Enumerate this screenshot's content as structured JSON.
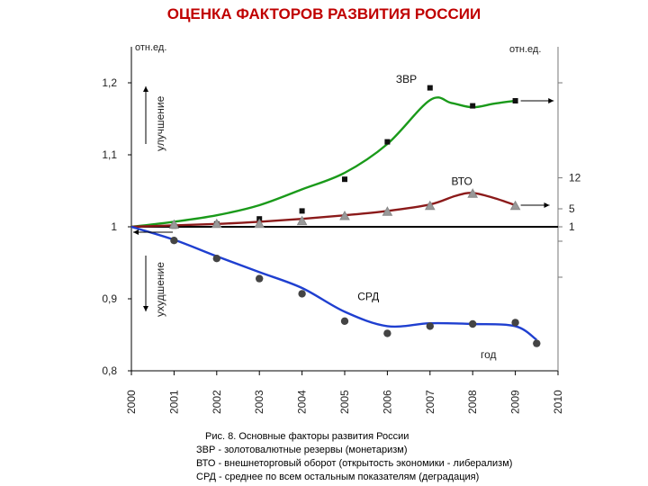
{
  "title": "ОЦЕНКА ФАКТОРОВ РАЗВИТИЯ РОССИИ",
  "colors": {
    "title": "#c00000",
    "zvr": "#1a9a1a",
    "vto": "#8b1a1a",
    "srd": "#1f3fd0",
    "axis": "#000000",
    "right_axis": "#777777"
  },
  "chart_data": {
    "type": "line",
    "left_unit": "отн.ед.",
    "right_unit": "отн.ед.",
    "xlabel": "год",
    "x_ticks": [
      "2000",
      "2001",
      "2002",
      "2003",
      "2004",
      "2005",
      "2006",
      "2007",
      "2008",
      "2009",
      "2010"
    ],
    "xlim": [
      2000,
      2010
    ],
    "ylim": [
      0.8,
      1.25
    ],
    "y_ticks": [
      "0,8",
      "0,9",
      "1",
      "1,1",
      "1,2"
    ],
    "y_tick_values": [
      0.8,
      0.9,
      1.0,
      1.1,
      1.2
    ],
    "right_ticks": [
      "1",
      "5",
      "12"
    ],
    "right_tick_values": [
      1.0,
      1.025,
      1.068
    ],
    "improvement_label": "улучшение",
    "deterioration_label": "ухудшение",
    "series": [
      {
        "name": "ЗВР",
        "color_key": "zvr",
        "marker": "square",
        "points": [
          [
            2001,
            1.001
          ],
          [
            2002,
            1.004
          ],
          [
            2003,
            1.011
          ],
          [
            2004,
            1.022
          ],
          [
            2005,
            1.066
          ],
          [
            2006,
            1.118
          ],
          [
            2007,
            1.193
          ],
          [
            2008,
            1.168
          ],
          [
            2009,
            1.175
          ]
        ],
        "trend": [
          [
            2000,
            1.0
          ],
          [
            2001,
            1.007
          ],
          [
            2002,
            1.016
          ],
          [
            2003,
            1.03
          ],
          [
            2004,
            1.052
          ],
          [
            2005,
            1.075
          ],
          [
            2006,
            1.115
          ],
          [
            2007,
            1.176
          ],
          [
            2007.5,
            1.172
          ],
          [
            2008,
            1.166
          ],
          [
            2008.5,
            1.171
          ],
          [
            2009,
            1.175
          ]
        ]
      },
      {
        "name": "ВТО",
        "color_key": "vto",
        "marker": "triangle",
        "points": [
          [
            2001,
            1.003
          ],
          [
            2002,
            1.004
          ],
          [
            2003,
            1.004
          ],
          [
            2004,
            1.008
          ],
          [
            2005,
            1.015
          ],
          [
            2006,
            1.021
          ],
          [
            2007,
            1.029
          ],
          [
            2008,
            1.046
          ],
          [
            2009,
            1.029
          ]
        ],
        "trend": [
          [
            2000,
            1.0
          ],
          [
            2002,
            1.004
          ],
          [
            2003,
            1.007
          ],
          [
            2004,
            1.011
          ],
          [
            2005,
            1.016
          ],
          [
            2006,
            1.022
          ],
          [
            2007,
            1.031
          ],
          [
            2007.6,
            1.043
          ],
          [
            2008,
            1.047
          ],
          [
            2008.5,
            1.04
          ],
          [
            2009,
            1.03
          ]
        ]
      },
      {
        "name": "СРД",
        "color_key": "srd",
        "marker": "circle",
        "points": [
          [
            2001,
            0.981
          ],
          [
            2002,
            0.956
          ],
          [
            2003,
            0.928
          ],
          [
            2004,
            0.907
          ],
          [
            2005,
            0.869
          ],
          [
            2006,
            0.852
          ],
          [
            2007,
            0.862
          ],
          [
            2008,
            0.865
          ],
          [
            2009,
            0.867
          ],
          [
            2009.5,
            0.838
          ]
        ],
        "trend": [
          [
            2000,
            1.0
          ],
          [
            2001,
            0.982
          ],
          [
            2002,
            0.959
          ],
          [
            2003,
            0.937
          ],
          [
            2004,
            0.915
          ],
          [
            2005,
            0.882
          ],
          [
            2006,
            0.862
          ],
          [
            2007,
            0.866
          ],
          [
            2008,
            0.865
          ],
          [
            2009,
            0.862
          ],
          [
            2009.5,
            0.843
          ]
        ]
      }
    ],
    "series_label_positions": {
      "ЗВР": [
        2006.2,
        1.2
      ],
      "ВТО": [
        2007.5,
        1.058
      ],
      "СРД": [
        2005.3,
        0.898
      ]
    },
    "right_arrows": [
      {
        "from": [
          2009,
          1.175
        ],
        "to_x": 2009.9
      },
      {
        "from": [
          2009,
          1.03
        ],
        "to_x": 2009.8
      }
    ]
  },
  "caption": {
    "line1": "Рис. 8. Основные факторы развития России",
    "line2": "ЗВР - золотовалютные резервы (монетаризм)",
    "line3": "ВТО - внешнеторговый оборот (открытость экономики - либерализм)",
    "line4": "СРД - среднее по всем остальным показателям (деградация)"
  }
}
